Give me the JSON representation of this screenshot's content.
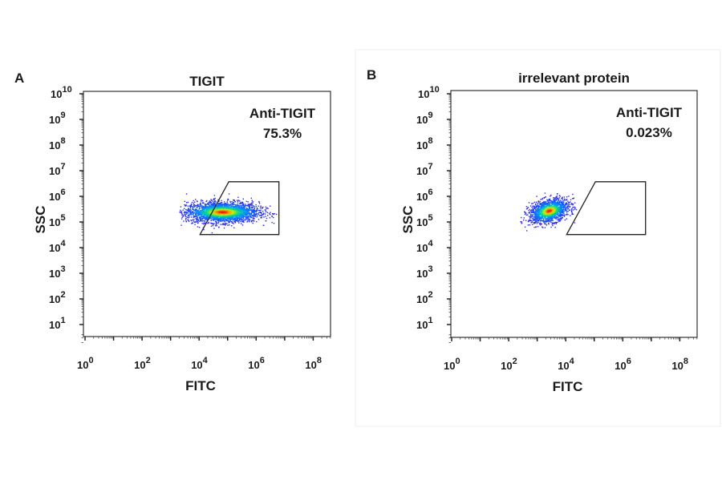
{
  "chart_data": [
    {
      "type": "scatter",
      "panel_label": "A",
      "title": "TIGIT",
      "xlabel": "FITC",
      "ylabel": "SSC",
      "x_scale": "log",
      "y_scale": "log",
      "xlim_log10": [
        0,
        8.6
      ],
      "ylim_log10": [
        0.6,
        10.1
      ],
      "x_ticks": [
        {
          "exp": "0"
        },
        {
          "exp": "2"
        },
        {
          "exp": "4"
        },
        {
          "exp": "6"
        },
        {
          "exp": "8"
        }
      ],
      "y_ticks": [
        {
          "exp": "1"
        },
        {
          "exp": "2"
        },
        {
          "exp": "3"
        },
        {
          "exp": "4"
        },
        {
          "exp": "5"
        },
        {
          "exp": "6"
        },
        {
          "exp": "7"
        },
        {
          "exp": "8"
        },
        {
          "exp": "9"
        },
        {
          "exp": "10"
        }
      ],
      "gate": {
        "name": "Anti-TIGIT",
        "percent": "75.3%",
        "vertices_log10": [
          [
            4.03,
            4.51
          ],
          [
            5.04,
            6.57
          ],
          [
            6.8,
            6.57
          ],
          [
            6.8,
            4.51
          ]
        ]
      },
      "population": {
        "center_log10": [
          4.8,
          5.4
        ],
        "spread_log10": [
          0.85,
          0.2
        ],
        "x_range_log10": [
          3.3,
          6.8
        ]
      },
      "grid": false
    },
    {
      "type": "scatter",
      "panel_label": "B",
      "title": "irrelevant protein",
      "xlabel": "FITC",
      "ylabel": "SSC",
      "x_scale": "log",
      "y_scale": "log",
      "xlim_log10": [
        0,
        8.6
      ],
      "ylim_log10": [
        0.6,
        10.1
      ],
      "x_ticks": [
        {
          "exp": "0"
        },
        {
          "exp": "2"
        },
        {
          "exp": "4"
        },
        {
          "exp": "6"
        },
        {
          "exp": "8"
        }
      ],
      "y_ticks": [
        {
          "exp": "1"
        },
        {
          "exp": "2"
        },
        {
          "exp": "3"
        },
        {
          "exp": "4"
        },
        {
          "exp": "5"
        },
        {
          "exp": "6"
        },
        {
          "exp": "7"
        },
        {
          "exp": "8"
        },
        {
          "exp": "9"
        },
        {
          "exp": "10"
        }
      ],
      "gate": {
        "name": "Anti-TIGIT",
        "percent": "0.023%",
        "vertices_log10": [
          [
            4.03,
            4.51
          ],
          [
            5.04,
            6.57
          ],
          [
            6.8,
            6.57
          ],
          [
            6.8,
            4.51
          ]
        ]
      },
      "population": {
        "center_log10": [
          3.4,
          5.45
        ],
        "spread_log10": [
          0.35,
          0.22
        ],
        "x_range_log10": [
          2.1,
          4.4
        ]
      },
      "grid": false
    }
  ],
  "colors": {
    "density_low": "#1010ff",
    "density_mid": "#00d080",
    "density_high": "#ff3000",
    "axis": "#1a1a1a"
  }
}
